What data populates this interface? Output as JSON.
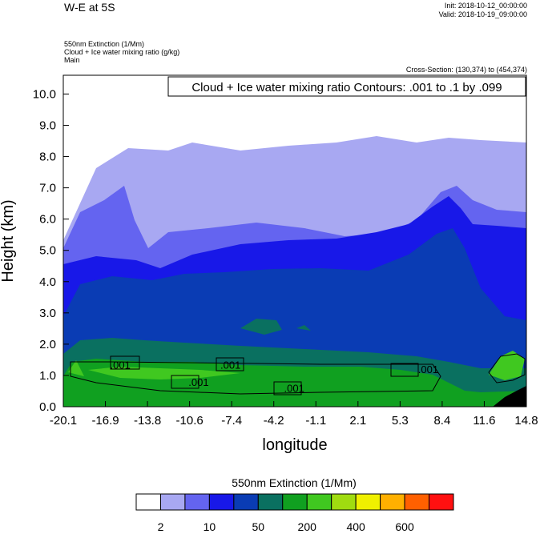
{
  "header": {
    "title": "W-E at 5S",
    "init": "Init: 2018-10-12_00:00:00",
    "valid": "Valid: 2018-10-19_09:00:00",
    "line1": "550nm Extinction   (1/Mm)",
    "line2": "Cloud + Ice water mixing ratio   (g/kg)",
    "line3": "Main",
    "cross_section": "Cross-Section: (130,374) to (454,374)"
  },
  "chart_data": {
    "type": "heatmap",
    "title": "Cloud + Ice water mixing ratio Contours: .001 to .1 by .099",
    "xlabel": "longitude",
    "ylabel": "Height (km)",
    "xlim": [
      -20.1,
      14.8
    ],
    "ylim": [
      0,
      10.6
    ],
    "x_ticks": [
      "-20.1",
      "-16.9",
      "-13.8",
      "-10.6",
      "-7.4",
      "-4.2",
      "-1.1",
      "2.1",
      "5.3",
      "8.4",
      "11.6",
      "14.8"
    ],
    "y_ticks": [
      "0.0",
      "1.0",
      "2.0",
      "3.0",
      "4.0",
      "5.0",
      "6.0",
      "7.0",
      "8.0",
      "9.0",
      "10.0"
    ],
    "grid": false,
    "contour_labels": [
      {
        "text": ".001",
        "x": -15.8,
        "y": 1.35
      },
      {
        "text": ".001",
        "x": -7.5,
        "y": 1.35
      },
      {
        "text": ".001",
        "x": -9.9,
        "y": 0.8
      },
      {
        "text": ".001",
        "x": -2.7,
        "y": 0.6
      },
      {
        "text": ".001",
        "x": 7.4,
        "y": 1.2
      }
    ],
    "colorbar": {
      "title": "550nm Extinction  (1/Mm)",
      "colors": [
        "#ffffff",
        "#a8a8f2",
        "#6464f0",
        "#1818e8",
        "#0a3cb4",
        "#0a7060",
        "#10a020",
        "#40c820",
        "#a0dc10",
        "#f0f000",
        "#ffb000",
        "#ff6000",
        "#ff1010"
      ],
      "labels": [
        "2",
        "10",
        "50",
        "200",
        "400",
        "600"
      ]
    }
  }
}
